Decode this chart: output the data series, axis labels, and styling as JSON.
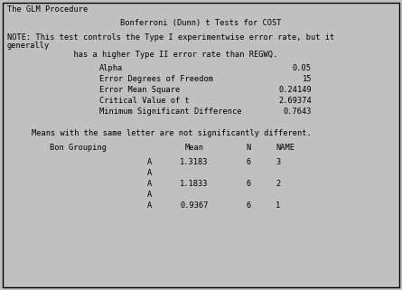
{
  "bg_color": "#c0c0c0",
  "border_color": "#000000",
  "text_color": "#000000",
  "font_family": "monospace",
  "title_line": "The GLM Procedure",
  "subtitle": "Bonferroni (Dunn) t Tests for COST",
  "note_line1": "NOTE: This test controls the Type I experimentwise error rate, but it",
  "note_line2": "generally",
  "note_line3": "              has a higher Type II error rate than REGWQ.",
  "stats": [
    [
      "Alpha",
      "0.05"
    ],
    [
      "Error Degrees of Freedom",
      "15"
    ],
    [
      "Error Mean Square",
      "0.24149"
    ],
    [
      "Critical Value of t",
      "2.69374"
    ],
    [
      "Minimum Significant Difference",
      "0.7643"
    ]
  ],
  "means_note": "Means with the same letter are not significantly different.",
  "table_header": [
    "Bon Grouping",
    "Mean",
    "N",
    "NAME"
  ],
  "table_rows": [
    [
      "A",
      "1.3183",
      "6",
      "3"
    ],
    [
      "A",
      "",
      "",
      ""
    ],
    [
      "A",
      "1.1833",
      "6",
      "2"
    ],
    [
      "A",
      "",
      "",
      ""
    ],
    [
      "A",
      "0.9367",
      "6",
      "1"
    ]
  ],
  "figsize": [
    4.45,
    3.21
  ],
  "dpi": 100,
  "font_size": 6.2
}
